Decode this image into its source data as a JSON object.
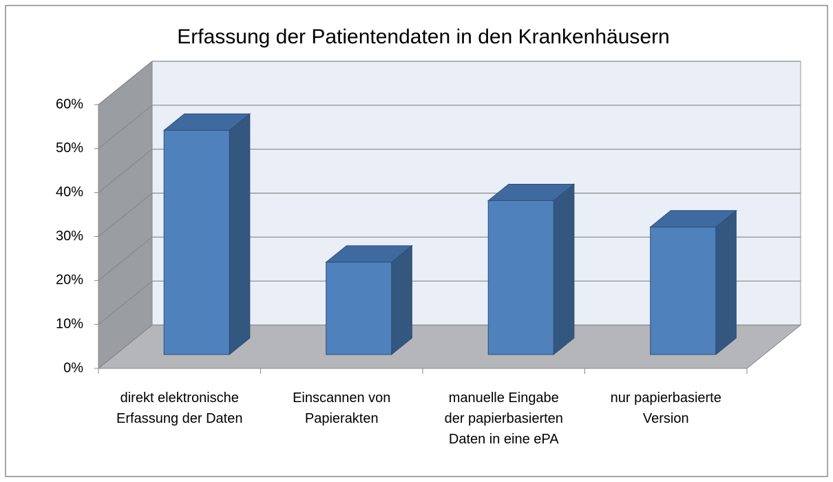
{
  "chart_data": {
    "type": "bar3d",
    "title": "Erfassung der Patientendaten in den Krankenhäusern",
    "categories": [
      "direkt elektronische\nErfassung der Daten",
      "Einscannen von\nPapierakten",
      "manuelle Eingabe\nder papierbasierten\nDaten in eine ePA",
      "nur papierbasierte\nVersion"
    ],
    "values": [
      51,
      21,
      35,
      29
    ],
    "color": "#4f81bd",
    "ylim": [
      0,
      60
    ],
    "yticks": [
      {
        "value": 0,
        "label": "0%"
      },
      {
        "value": 10,
        "label": "10%"
      },
      {
        "value": 20,
        "label": "20%"
      },
      {
        "value": 30,
        "label": "30%"
      },
      {
        "value": 40,
        "label": "40%"
      },
      {
        "value": 50,
        "label": "50%"
      },
      {
        "value": 60,
        "label": "60%"
      }
    ],
    "grid": true
  }
}
